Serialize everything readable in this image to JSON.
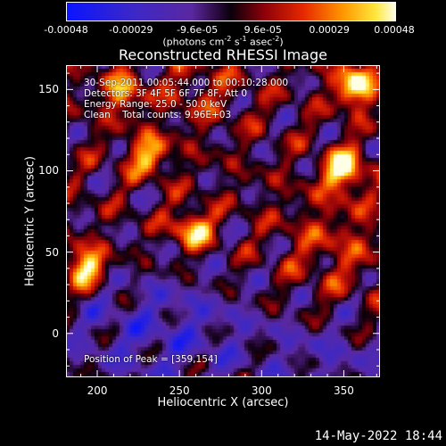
{
  "colorbar": {
    "ticks": [
      "-0.00048",
      "-0.00029",
      "-9.6e-05",
      "9.6e-05",
      "0.00029",
      "0.00048"
    ],
    "tick_values": [
      -0.00048,
      -0.00029,
      -9.6e-05,
      9.6e-05,
      0.00029,
      0.00048
    ],
    "range": [
      -0.00048,
      0.00048
    ],
    "unit_parts": [
      "(photons cm",
      "-2",
      " s",
      "-1",
      " asec",
      "-2",
      ")"
    ]
  },
  "chart_data": {
    "type": "heatmap",
    "title": "Reconstructed RHESSI Image",
    "xlabel": "Heliocentric X (arcsec)",
    "ylabel": "Heliocentric Y (arcsec)",
    "xlim": [
      181,
      372
    ],
    "ylim": [
      -27,
      165
    ],
    "xticks": [
      200,
      250,
      300,
      350
    ],
    "yticks": [
      0,
      50,
      100,
      150
    ],
    "colormap": "RHESSI blue-purple-red-yellow-white",
    "peak": [
      359,
      154
    ],
    "hot_spots": [
      {
        "x": 357,
        "y": 152,
        "level": 1.0
      },
      {
        "x": 350,
        "y": 101,
        "level": 0.95
      },
      {
        "x": 193,
        "y": 41,
        "level": 0.95
      },
      {
        "x": 258,
        "y": 64,
        "level": 0.8
      },
      {
        "x": 231,
        "y": 110,
        "level": 0.7
      },
      {
        "x": 215,
        "y": 148,
        "level": 0.65
      }
    ],
    "annotations": [
      "30-Sep-2011 00:05:44.000 to 00:10:28.000",
      "Detectors: 3F 4F 5F 6F 7F 8F, Att 0",
      "Energy Range: 25.0 - 50.0 keV",
      "Clean    Total counts: 9.96E+03",
      "Position of Peak = [359,154]"
    ]
  },
  "timestamp": "14-May-2022 18:44"
}
